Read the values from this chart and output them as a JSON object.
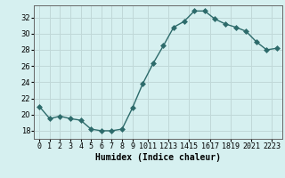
{
  "x": [
    0,
    1,
    2,
    3,
    4,
    5,
    6,
    7,
    8,
    9,
    10,
    11,
    12,
    13,
    14,
    15,
    16,
    17,
    18,
    19,
    20,
    21,
    22,
    23
  ],
  "y": [
    21.0,
    19.5,
    19.8,
    19.5,
    19.3,
    18.2,
    18.0,
    18.0,
    18.2,
    20.8,
    23.8,
    26.3,
    28.5,
    30.8,
    31.5,
    32.8,
    32.8,
    31.8,
    31.2,
    30.8,
    30.3,
    29.0,
    28.0,
    28.2
  ],
  "line_color": "#2d6b6b",
  "marker_size": 3,
  "bg_color": "#d6f0f0",
  "grid_color": "#c0d8d8",
  "xlabel": "Humidex (Indice chaleur)",
  "ylim": [
    17,
    33.5
  ],
  "xlim": [
    -0.5,
    23.5
  ],
  "yticks": [
    18,
    20,
    22,
    24,
    26,
    28,
    30,
    32
  ],
  "tick_fontsize": 6,
  "xlabel_fontsize": 7,
  "line_width": 1.0
}
